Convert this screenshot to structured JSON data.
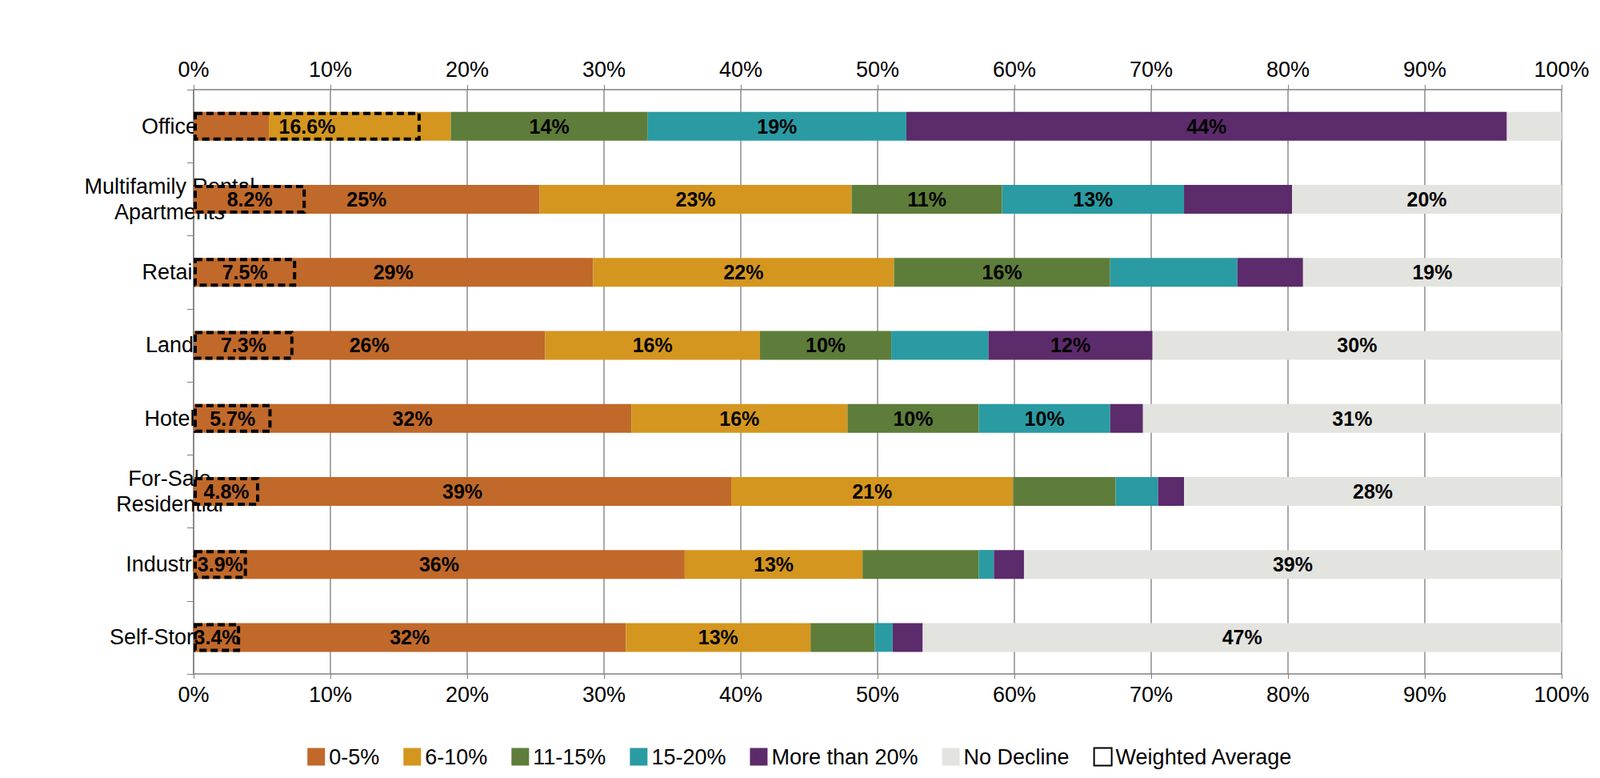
{
  "chart_data": {
    "type": "bar",
    "orientation": "horizontal",
    "stacked": true,
    "data_labels": true,
    "grid": true,
    "legend": "bottom",
    "categories": [
      "Office",
      "Multifamily Rental\nApartments",
      "Retail",
      "Land",
      "Hotel",
      "For-Sale\nResidential",
      "Industrial",
      "Self-Storage"
    ],
    "xlim": [
      0,
      100
    ],
    "xticks": [
      {
        "value": 0,
        "label": "0%"
      },
      {
        "value": 10,
        "label": "10%"
      },
      {
        "value": 20,
        "label": "20%"
      },
      {
        "value": 30,
        "label": "30%"
      },
      {
        "value": 40,
        "label": "40%"
      },
      {
        "value": 50,
        "label": "50%"
      },
      {
        "value": 60,
        "label": "60%"
      },
      {
        "value": 70,
        "label": "70%"
      },
      {
        "value": 80,
        "label": "80%"
      },
      {
        "value": 90,
        "label": "90%"
      },
      {
        "value": 100,
        "label": "100%"
      }
    ],
    "series": [
      {
        "name": "0-5%",
        "color": "#C0692A",
        "values": [
          5.5,
          25.3,
          29.2,
          25.7,
          32.0,
          39.3,
          35.9,
          31.6
        ],
        "value_labels": [
          null,
          "25%",
          "29%",
          "26%",
          "32%",
          "39%",
          "36%",
          "32%"
        ]
      },
      {
        "name": "6-10%",
        "color": "#D4961F",
        "values": [
          13.3,
          22.8,
          22.0,
          15.7,
          15.8,
          20.6,
          13.0,
          13.5
        ],
        "value_labels": [
          null,
          "23%",
          "22%",
          "16%",
          "16%",
          "21%",
          "13%",
          "13%"
        ]
      },
      {
        "name": "11-15%",
        "color": "#5E7D3A",
        "values": [
          14.4,
          11.0,
          15.8,
          9.6,
          9.6,
          7.5,
          8.5,
          4.7
        ],
        "value_labels": [
          "14%",
          "11%",
          "16%",
          "10%",
          "10%",
          null,
          null,
          null
        ]
      },
      {
        "name": "15-20%",
        "color": "#2A9BA3",
        "values": [
          18.9,
          13.3,
          9.3,
          7.1,
          9.6,
          3.1,
          1.1,
          1.3
        ],
        "value_labels": [
          "19%",
          "13%",
          null,
          null,
          "10%",
          null,
          null,
          null
        ]
      },
      {
        "name": "More than 20%",
        "color": "#5C2B6B",
        "values": [
          43.9,
          7.9,
          4.8,
          12.0,
          2.4,
          1.9,
          2.2,
          2.2
        ],
        "value_labels": [
          "44%",
          null,
          null,
          "12%",
          null,
          null,
          null,
          null
        ]
      },
      {
        "name": "No Decline",
        "color": "#E3E3DF",
        "values": [
          4.0,
          19.7,
          18.9,
          29.9,
          30.6,
          27.6,
          39.3,
          46.7
        ],
        "value_labels": [
          null,
          "20%",
          "19%",
          "30%",
          "31%",
          "28%",
          "39%",
          "47%"
        ]
      }
    ],
    "weighted_average": {
      "name": "Weighted Average",
      "values": [
        16.6,
        8.2,
        7.5,
        7.3,
        5.7,
        4.8,
        3.9,
        3.4
      ],
      "value_labels": [
        "16.6%",
        "8.2%",
        "7.5%",
        "7.3%",
        "5.7%",
        "4.8%",
        "3.9%",
        "3.4%"
      ]
    }
  }
}
